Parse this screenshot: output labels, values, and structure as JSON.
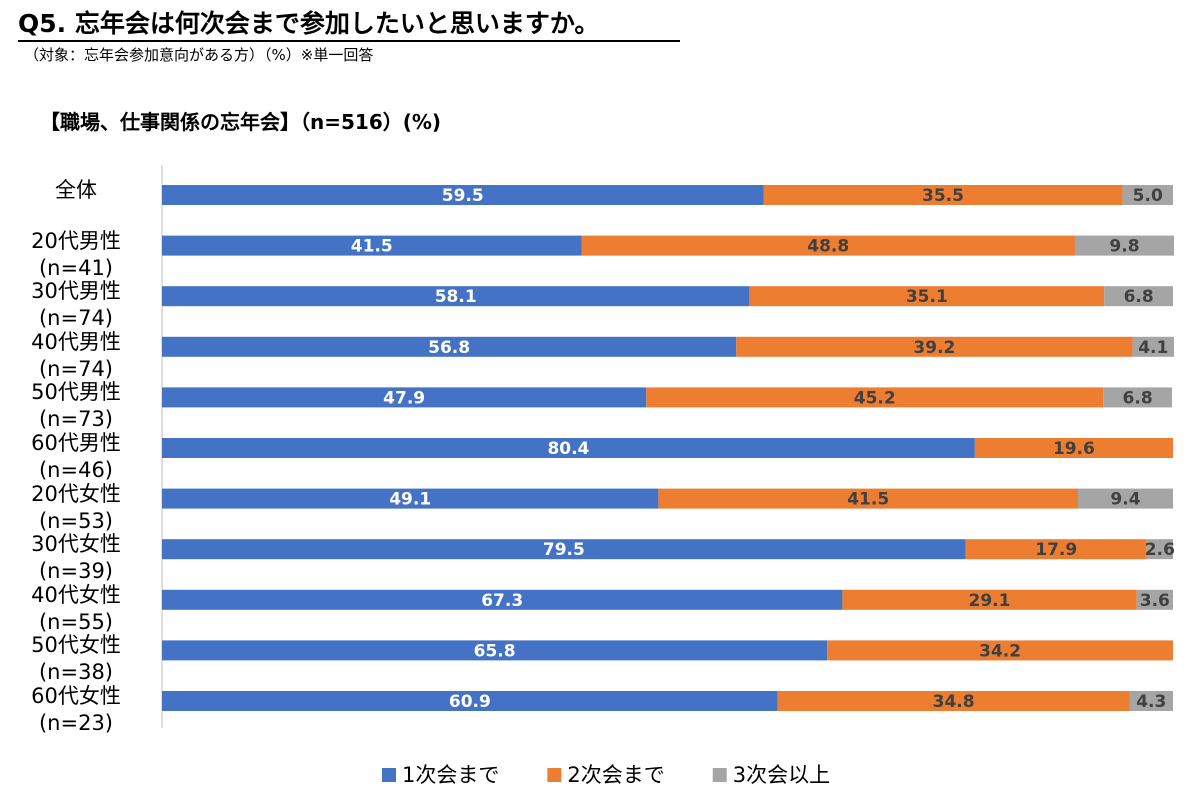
{
  "chart_data": {
    "type": "stacked-bar-horizontal",
    "title": "Q5. 忘年会は何次会まで参加したいと思いますか。",
    "subtitle": "（対象：忘年会参加意向がある方）（%）※単一回答",
    "section_title": "【職場、仕事関係の忘年会】（n=516）(%)",
    "categories": [
      "全体",
      "20代男性\n(n=41)",
      "30代男性\n(n=74)",
      "40代男性\n(n=74)",
      "50代男性\n(n=73)",
      "60代男性\n(n=46)",
      "20代女性\n(n=53)",
      "30代女性\n(n=39)",
      "40代女性\n(n=55)",
      "50代女性\n(n=38)",
      "60代女性\n(n=23)"
    ],
    "xlim": [
      0,
      100
    ],
    "legend": "bottom",
    "series": [
      {
        "name": "1次会まで",
        "color": "#4472c4",
        "label_color": "#ffffff",
        "values": [
          59.5,
          41.5,
          58.1,
          56.8,
          47.9,
          80.4,
          49.1,
          79.5,
          67.3,
          65.8,
          60.9
        ]
      },
      {
        "name": "2次会まで",
        "color": "#ed7d31",
        "label_color": "#404040",
        "values": [
          35.5,
          48.8,
          35.1,
          39.2,
          45.2,
          19.6,
          41.5,
          17.9,
          29.1,
          34.2,
          34.8
        ]
      },
      {
        "name": "3次会以上",
        "color": "#a5a5a5",
        "label_color": "#404040",
        "values": [
          5.0,
          9.8,
          6.8,
          4.1,
          6.8,
          0,
          9.4,
          2.6,
          3.6,
          0,
          4.3
        ],
        "value_labels": [
          "5.0",
          "9.8",
          "6.8",
          "4.1",
          "6.8",
          null,
          "9.4",
          "2.6",
          "3.6",
          null,
          "4.3"
        ]
      }
    ]
  }
}
